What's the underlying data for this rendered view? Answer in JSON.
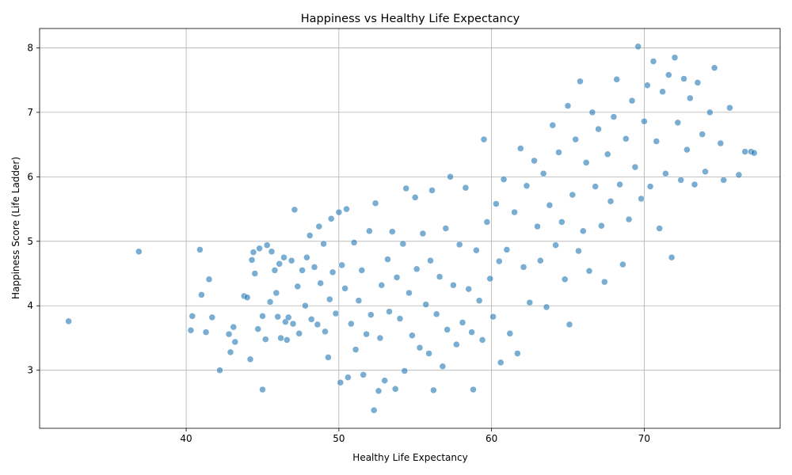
{
  "chart_data": {
    "type": "scatter",
    "title": "Happiness vs Healthy Life Expectancy",
    "xlabel": "Healthy Life Expectancy",
    "ylabel": "Happiness Score (Life Ladder)",
    "xlim": [
      30.4,
      78.9
    ],
    "ylim": [
      2.1,
      8.3
    ],
    "xticks": [
      40,
      50,
      60,
      70
    ],
    "yticks": [
      3,
      4,
      5,
      6,
      7,
      8
    ],
    "grid": true,
    "color": "#1f77b4",
    "points": [
      [
        32.3,
        3.76
      ],
      [
        36.9,
        4.84
      ],
      [
        40.3,
        3.62
      ],
      [
        40.4,
        3.84
      ],
      [
        40.9,
        4.87
      ],
      [
        41.0,
        4.17
      ],
      [
        41.3,
        3.59
      ],
      [
        41.5,
        4.41
      ],
      [
        41.7,
        3.82
      ],
      [
        42.2,
        3.0
      ],
      [
        42.8,
        3.56
      ],
      [
        42.9,
        3.28
      ],
      [
        43.1,
        3.67
      ],
      [
        43.2,
        3.44
      ],
      [
        43.8,
        4.15
      ],
      [
        44.0,
        4.13
      ],
      [
        44.2,
        3.17
      ],
      [
        44.3,
        4.71
      ],
      [
        44.4,
        4.83
      ],
      [
        44.5,
        4.5
      ],
      [
        44.7,
        3.64
      ],
      [
        44.8,
        4.89
      ],
      [
        45.0,
        2.7
      ],
      [
        45.0,
        3.84
      ],
      [
        45.2,
        3.48
      ],
      [
        45.3,
        4.94
      ],
      [
        45.5,
        4.06
      ],
      [
        45.6,
        4.84
      ],
      [
        45.8,
        4.55
      ],
      [
        45.9,
        4.2
      ],
      [
        46.0,
        3.83
      ],
      [
        46.1,
        4.65
      ],
      [
        46.2,
        3.5
      ],
      [
        46.4,
        4.75
      ],
      [
        46.5,
        3.75
      ],
      [
        46.6,
        3.47
      ],
      [
        46.7,
        3.82
      ],
      [
        46.9,
        4.7
      ],
      [
        47.0,
        3.72
      ],
      [
        47.1,
        5.49
      ],
      [
        47.3,
        4.3
      ],
      [
        47.4,
        3.57
      ],
      [
        47.6,
        4.55
      ],
      [
        47.8,
        4.0
      ],
      [
        47.9,
        4.75
      ],
      [
        48.1,
        5.09
      ],
      [
        48.2,
        3.79
      ],
      [
        48.4,
        4.6
      ],
      [
        48.6,
        3.71
      ],
      [
        48.7,
        5.23
      ],
      [
        48.8,
        4.35
      ],
      [
        49.0,
        4.96
      ],
      [
        49.1,
        3.6
      ],
      [
        49.3,
        3.2
      ],
      [
        49.4,
        4.1
      ],
      [
        49.5,
        5.35
      ],
      [
        49.6,
        4.52
      ],
      [
        49.8,
        3.88
      ],
      [
        50.0,
        5.45
      ],
      [
        50.1,
        2.81
      ],
      [
        50.2,
        4.63
      ],
      [
        50.4,
        4.27
      ],
      [
        50.5,
        5.5
      ],
      [
        50.6,
        2.89
      ],
      [
        50.8,
        3.72
      ],
      [
        51.0,
        4.98
      ],
      [
        51.1,
        3.32
      ],
      [
        51.3,
        4.08
      ],
      [
        51.5,
        4.55
      ],
      [
        51.6,
        2.93
      ],
      [
        51.8,
        3.56
      ],
      [
        52.0,
        5.16
      ],
      [
        52.1,
        3.86
      ],
      [
        52.3,
        2.38
      ],
      [
        52.4,
        5.59
      ],
      [
        52.6,
        2.68
      ],
      [
        52.7,
        3.5
      ],
      [
        52.8,
        4.32
      ],
      [
        53.0,
        2.84
      ],
      [
        53.2,
        4.72
      ],
      [
        53.3,
        3.91
      ],
      [
        53.5,
        5.15
      ],
      [
        53.7,
        2.71
      ],
      [
        53.8,
        4.44
      ],
      [
        54.0,
        3.8
      ],
      [
        54.2,
        4.96
      ],
      [
        54.3,
        2.99
      ],
      [
        54.4,
        5.82
      ],
      [
        54.6,
        4.2
      ],
      [
        54.8,
        3.54
      ],
      [
        55.0,
        5.68
      ],
      [
        55.1,
        4.57
      ],
      [
        55.3,
        3.35
      ],
      [
        55.5,
        5.12
      ],
      [
        55.7,
        4.02
      ],
      [
        55.9,
        3.26
      ],
      [
        56.0,
        4.7
      ],
      [
        56.1,
        5.79
      ],
      [
        56.2,
        2.69
      ],
      [
        56.4,
        3.87
      ],
      [
        56.6,
        4.45
      ],
      [
        56.8,
        3.06
      ],
      [
        57.0,
        5.2
      ],
      [
        57.1,
        3.63
      ],
      [
        57.3,
        6.0
      ],
      [
        57.5,
        4.32
      ],
      [
        57.7,
        3.4
      ],
      [
        57.9,
        4.95
      ],
      [
        58.1,
        3.74
      ],
      [
        58.3,
        5.83
      ],
      [
        58.5,
        4.26
      ],
      [
        58.7,
        3.59
      ],
      [
        58.8,
        2.7
      ],
      [
        59.0,
        4.86
      ],
      [
        59.2,
        4.08
      ],
      [
        59.4,
        3.47
      ],
      [
        59.5,
        6.58
      ],
      [
        59.7,
        5.3
      ],
      [
        59.9,
        4.42
      ],
      [
        60.1,
        3.83
      ],
      [
        60.3,
        5.58
      ],
      [
        60.5,
        4.69
      ],
      [
        60.6,
        3.12
      ],
      [
        60.8,
        5.96
      ],
      [
        61.0,
        4.87
      ],
      [
        61.2,
        3.57
      ],
      [
        61.5,
        5.45
      ],
      [
        61.7,
        3.26
      ],
      [
        61.9,
        6.44
      ],
      [
        62.1,
        4.6
      ],
      [
        62.3,
        5.86
      ],
      [
        62.5,
        4.05
      ],
      [
        62.8,
        6.25
      ],
      [
        63.0,
        5.23
      ],
      [
        63.2,
        4.7
      ],
      [
        63.4,
        6.05
      ],
      [
        63.6,
        3.98
      ],
      [
        63.8,
        5.56
      ],
      [
        64.0,
        6.8
      ],
      [
        64.2,
        4.94
      ],
      [
        64.4,
        6.38
      ],
      [
        64.6,
        5.3
      ],
      [
        64.8,
        4.41
      ],
      [
        65.0,
        7.1
      ],
      [
        65.1,
        3.71
      ],
      [
        65.3,
        5.72
      ],
      [
        65.5,
        6.58
      ],
      [
        65.7,
        4.85
      ],
      [
        65.8,
        7.48
      ],
      [
        66.0,
        5.16
      ],
      [
        66.2,
        6.22
      ],
      [
        66.4,
        4.54
      ],
      [
        66.6,
        7.0
      ],
      [
        66.8,
        5.85
      ],
      [
        67.0,
        6.74
      ],
      [
        67.2,
        5.24
      ],
      [
        67.4,
        4.37
      ],
      [
        67.6,
        6.35
      ],
      [
        67.8,
        5.62
      ],
      [
        68.0,
        6.93
      ],
      [
        68.2,
        7.51
      ],
      [
        68.4,
        5.88
      ],
      [
        68.6,
        4.64
      ],
      [
        68.8,
        6.59
      ],
      [
        69.0,
        5.34
      ],
      [
        69.2,
        7.18
      ],
      [
        69.4,
        6.15
      ],
      [
        69.6,
        8.02
      ],
      [
        69.8,
        5.66
      ],
      [
        70.0,
        6.86
      ],
      [
        70.2,
        7.42
      ],
      [
        70.4,
        5.85
      ],
      [
        70.6,
        7.79
      ],
      [
        70.8,
        6.55
      ],
      [
        71.0,
        5.2
      ],
      [
        71.2,
        7.32
      ],
      [
        71.4,
        6.05
      ],
      [
        71.6,
        7.58
      ],
      [
        71.8,
        4.75
      ],
      [
        72.0,
        7.85
      ],
      [
        72.2,
        6.84
      ],
      [
        72.4,
        5.95
      ],
      [
        72.6,
        7.52
      ],
      [
        72.8,
        6.42
      ],
      [
        73.0,
        7.22
      ],
      [
        73.3,
        5.88
      ],
      [
        73.5,
        7.46
      ],
      [
        73.8,
        6.66
      ],
      [
        74.0,
        6.08
      ],
      [
        74.3,
        7.0
      ],
      [
        74.6,
        7.69
      ],
      [
        75.0,
        6.52
      ],
      [
        75.2,
        5.95
      ],
      [
        75.6,
        7.07
      ],
      [
        76.2,
        6.03
      ],
      [
        76.6,
        6.39
      ],
      [
        77.0,
        6.39
      ],
      [
        77.2,
        6.37
      ]
    ]
  }
}
